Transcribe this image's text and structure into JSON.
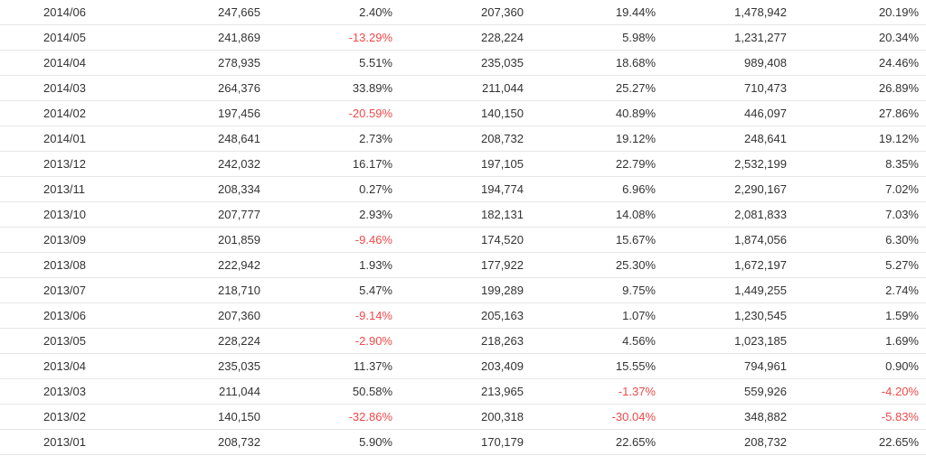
{
  "colors": {
    "negative": "#f04a4a",
    "text": "#333333",
    "border": "#e6e6e6"
  },
  "rows": [
    [
      "2014/06",
      "247,665",
      "2.40%",
      "207,360",
      "19.44%",
      "1,478,942",
      "20.19%"
    ],
    [
      "2014/05",
      "241,869",
      "-13.29%",
      "228,224",
      "5.98%",
      "1,231,277",
      "20.34%"
    ],
    [
      "2014/04",
      "278,935",
      "5.51%",
      "235,035",
      "18.68%",
      "989,408",
      "24.46%"
    ],
    [
      "2014/03",
      "264,376",
      "33.89%",
      "211,044",
      "25.27%",
      "710,473",
      "26.89%"
    ],
    [
      "2014/02",
      "197,456",
      "-20.59%",
      "140,150",
      "40.89%",
      "446,097",
      "27.86%"
    ],
    [
      "2014/01",
      "248,641",
      "2.73%",
      "208,732",
      "19.12%",
      "248,641",
      "19.12%"
    ],
    [
      "2013/12",
      "242,032",
      "16.17%",
      "197,105",
      "22.79%",
      "2,532,199",
      "8.35%"
    ],
    [
      "2013/11",
      "208,334",
      "0.27%",
      "194,774",
      "6.96%",
      "2,290,167",
      "7.02%"
    ],
    [
      "2013/10",
      "207,777",
      "2.93%",
      "182,131",
      "14.08%",
      "2,081,833",
      "7.03%"
    ],
    [
      "2013/09",
      "201,859",
      "-9.46%",
      "174,520",
      "15.67%",
      "1,874,056",
      "6.30%"
    ],
    [
      "2013/08",
      "222,942",
      "1.93%",
      "177,922",
      "25.30%",
      "1,672,197",
      "5.27%"
    ],
    [
      "2013/07",
      "218,710",
      "5.47%",
      "199,289",
      "9.75%",
      "1,449,255",
      "2.74%"
    ],
    [
      "2013/06",
      "207,360",
      "-9.14%",
      "205,163",
      "1.07%",
      "1,230,545",
      "1.59%"
    ],
    [
      "2013/05",
      "228,224",
      "-2.90%",
      "218,263",
      "4.56%",
      "1,023,185",
      "1.69%"
    ],
    [
      "2013/04",
      "235,035",
      "11.37%",
      "203,409",
      "15.55%",
      "794,961",
      "0.90%"
    ],
    [
      "2013/03",
      "211,044",
      "50.58%",
      "213,965",
      "-1.37%",
      "559,926",
      "-4.20%"
    ],
    [
      "2013/02",
      "140,150",
      "-32.86%",
      "200,318",
      "-30.04%",
      "348,882",
      "-5.83%"
    ],
    [
      "2013/01",
      "208,732",
      "5.90%",
      "170,179",
      "22.65%",
      "208,732",
      "22.65%"
    ]
  ]
}
